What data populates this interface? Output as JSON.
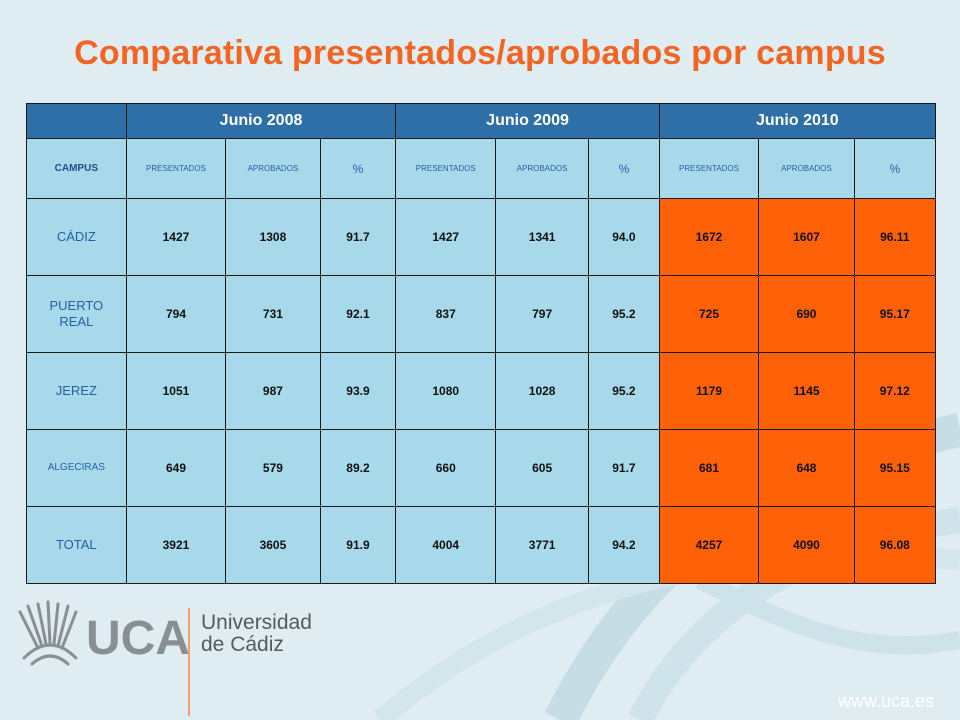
{
  "title": "Comparativa presentados/aprobados por campus",
  "table": {
    "years": [
      "Junio 2008",
      "Junio 2009",
      "Junio 2010"
    ],
    "sub": {
      "campus": "CAMPUS",
      "presentados": "PRESENTADOS",
      "aprobados": "APROBADOS",
      "pct": "%"
    },
    "rows": [
      {
        "campus": "CÁDIZ",
        "v": [
          "1427",
          "1308",
          "91.7",
          "1427",
          "1341",
          "94.0",
          "1672",
          "1607",
          "96.11"
        ]
      },
      {
        "campus": "PUERTO REAL",
        "v": [
          "794",
          "731",
          "92.1",
          "837",
          "797",
          "95.2",
          "725",
          "690",
          "95.17"
        ]
      },
      {
        "campus": "JEREZ",
        "v": [
          "1051",
          "987",
          "93.9",
          "1080",
          "1028",
          "95.2",
          "1179",
          "1145",
          "97.12"
        ]
      },
      {
        "campus": "ALGECIRAS",
        "v": [
          "649",
          "579",
          "89.2",
          "660",
          "605",
          "91.7",
          "681",
          "648",
          "95.15"
        ]
      },
      {
        "campus": "TOTAL",
        "v": [
          "3921",
          "3605",
          "91.9",
          "4004",
          "3771",
          "94.2",
          "4257",
          "4090",
          "96.08"
        ]
      }
    ]
  },
  "logo": {
    "brand": "UCA",
    "name_line1": "Universidad",
    "name_line2": "de Cádiz"
  },
  "footer_url": "www.uca.es",
  "colors": {
    "title": "#f26522",
    "header_blue": "#2f6fa8",
    "cell_blue": "#a7d9ea",
    "highlight_orange": "#ff6109",
    "background": "#dfecf1"
  }
}
